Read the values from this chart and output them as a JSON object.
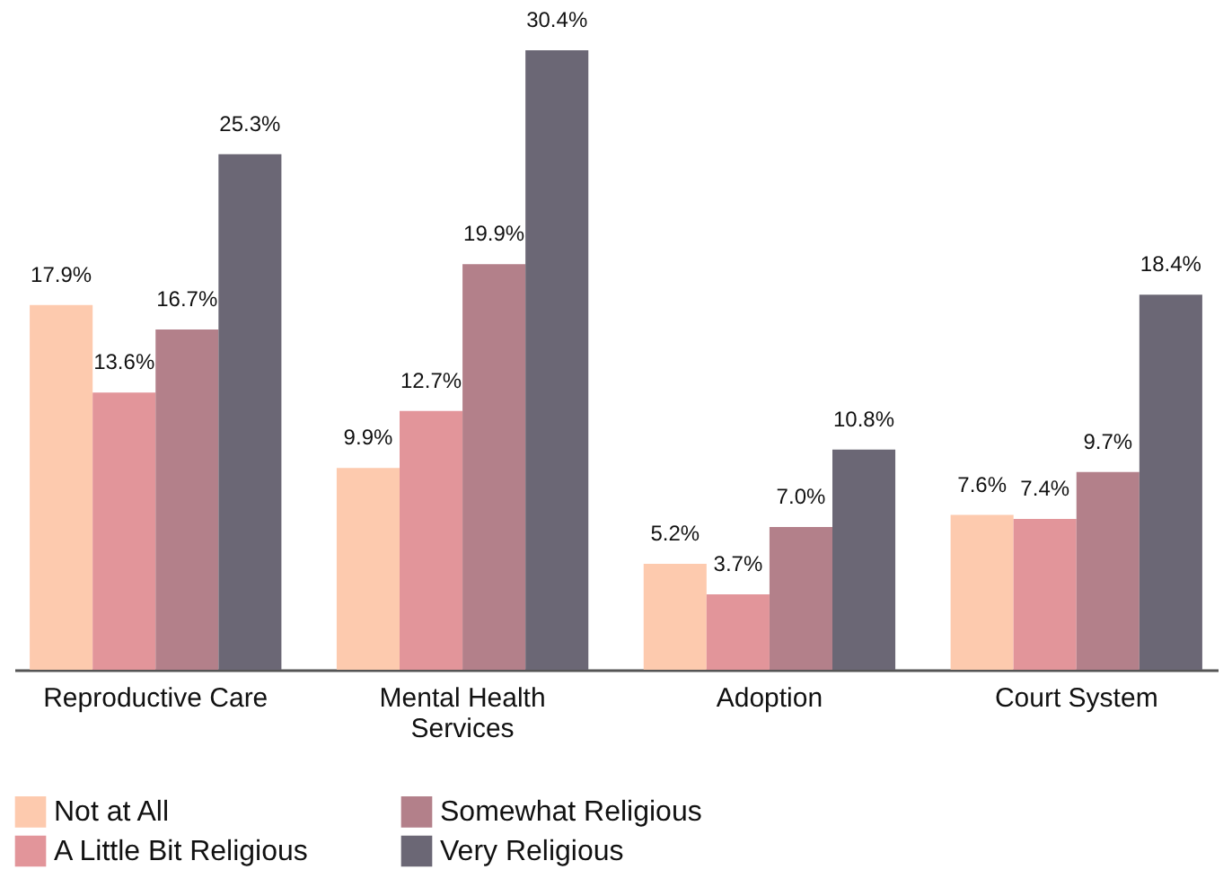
{
  "chart_data": {
    "type": "bar",
    "categories": [
      "Reproductive Care",
      "Mental Health Services",
      "Adoption",
      "Court System"
    ],
    "series": [
      {
        "name": "Not at All",
        "color": "#fdcaae",
        "values": [
          17.9,
          9.9,
          5.2,
          7.6
        ],
        "value_labels": [
          "17.9%",
          "9.9%",
          "5.2%",
          "7.6%"
        ]
      },
      {
        "name": "A Little Bit Religious",
        "color": "#e2959a",
        "values": [
          13.6,
          12.7,
          3.7,
          7.4
        ],
        "value_labels": [
          "13.6%",
          "12.7%",
          "3.7%",
          "7.4%"
        ]
      },
      {
        "name": "Somewhat Religious",
        "color": "#b3808a",
        "values": [
          16.7,
          19.9,
          7.0,
          9.7
        ],
        "value_labels": [
          "16.7%",
          "19.9%",
          "7.0%",
          "9.7%"
        ]
      },
      {
        "name": "Very Religious",
        "color": "#6b6775",
        "values": [
          25.3,
          30.4,
          10.8,
          18.4
        ],
        "value_labels": [
          "25.3%",
          "30.4%",
          "10.8%",
          "18.4%"
        ]
      }
    ],
    "legend": "bottom",
    "grid": false
  }
}
